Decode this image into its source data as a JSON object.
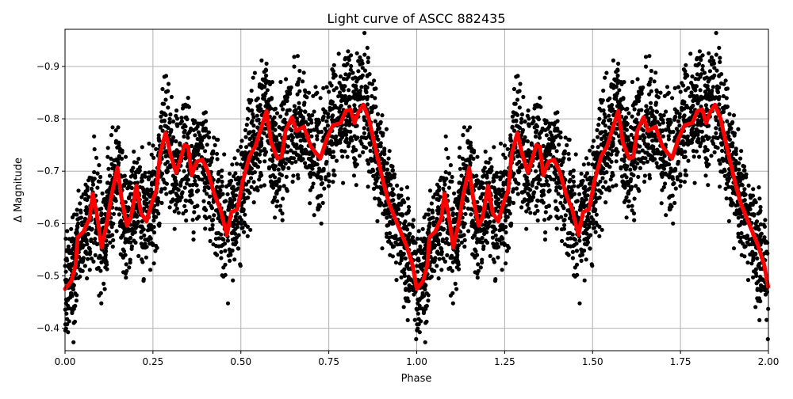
{
  "chart_data": {
    "type": "scatter",
    "title": "Light curve of ASCC 882435",
    "xlabel": "Phase",
    "ylabel": "Δ Magnitude",
    "xlim": [
      0,
      2
    ],
    "ylim": [
      -0.357,
      -0.971
    ],
    "y_inverted": true,
    "grid": true,
    "x_ticks": [
      "0.00",
      "0.25",
      "0.50",
      "0.75",
      "1.00",
      "1.25",
      "1.50",
      "1.75",
      "2.00"
    ],
    "x_tick_values": [
      0,
      0.25,
      0.5,
      0.75,
      1,
      1.25,
      1.5,
      1.75,
      2
    ],
    "y_ticks": [
      "−0.9",
      "−0.8",
      "−0.7",
      "−0.6",
      "−0.5",
      "−0.4"
    ],
    "y_tick_values": [
      -0.9,
      -0.8,
      -0.7,
      -0.6,
      -0.5,
      -0.4
    ],
    "colors": {
      "points": "#000000",
      "binned_curve": "#ff0000",
      "grid": "#b0b0b0"
    },
    "binned_curve": {
      "phase": [
        0,
        0.018,
        0.03,
        0.036,
        0.052,
        0.07,
        0.079,
        0.09,
        0.104,
        0.12,
        0.131,
        0.149,
        0.16,
        0.176,
        0.187,
        0.203,
        0.216,
        0.232,
        0.248,
        0.26,
        0.27,
        0.286,
        0.3,
        0.316,
        0.329,
        0.34,
        0.35,
        0.36,
        0.374,
        0.39,
        0.406,
        0.424,
        0.442,
        0.46,
        0.473,
        0.49,
        0.505,
        0.525,
        0.541,
        0.559,
        0.573,
        0.586,
        0.604,
        0.616,
        0.627,
        0.645,
        0.658,
        0.679,
        0.699,
        0.726,
        0.744,
        0.762,
        0.784,
        0.798,
        0.812,
        0.823,
        0.834,
        0.848,
        0.864,
        0.884,
        0.904,
        0.92,
        0.942,
        0.97,
        0.988,
        0.999
      ],
      "magnitude": [
        -0.475,
        -0.49,
        -0.52,
        -0.574,
        -0.584,
        -0.61,
        -0.657,
        -0.62,
        -0.554,
        -0.604,
        -0.65,
        -0.707,
        -0.65,
        -0.596,
        -0.61,
        -0.672,
        -0.62,
        -0.604,
        -0.642,
        -0.664,
        -0.732,
        -0.773,
        -0.732,
        -0.697,
        -0.724,
        -0.75,
        -0.747,
        -0.692,
        -0.718,
        -0.722,
        -0.7,
        -0.657,
        -0.627,
        -0.578,
        -0.622,
        -0.627,
        -0.68,
        -0.729,
        -0.747,
        -0.785,
        -0.815,
        -0.755,
        -0.724,
        -0.727,
        -0.777,
        -0.803,
        -0.777,
        -0.785,
        -0.747,
        -0.724,
        -0.762,
        -0.788,
        -0.792,
        -0.815,
        -0.818,
        -0.792,
        -0.812,
        -0.827,
        -0.8,
        -0.739,
        -0.682,
        -0.641,
        -0.604,
        -0.559,
        -0.521,
        -0.479
      ],
      "repeats_for_phase_1_to_2": true
    }
  }
}
